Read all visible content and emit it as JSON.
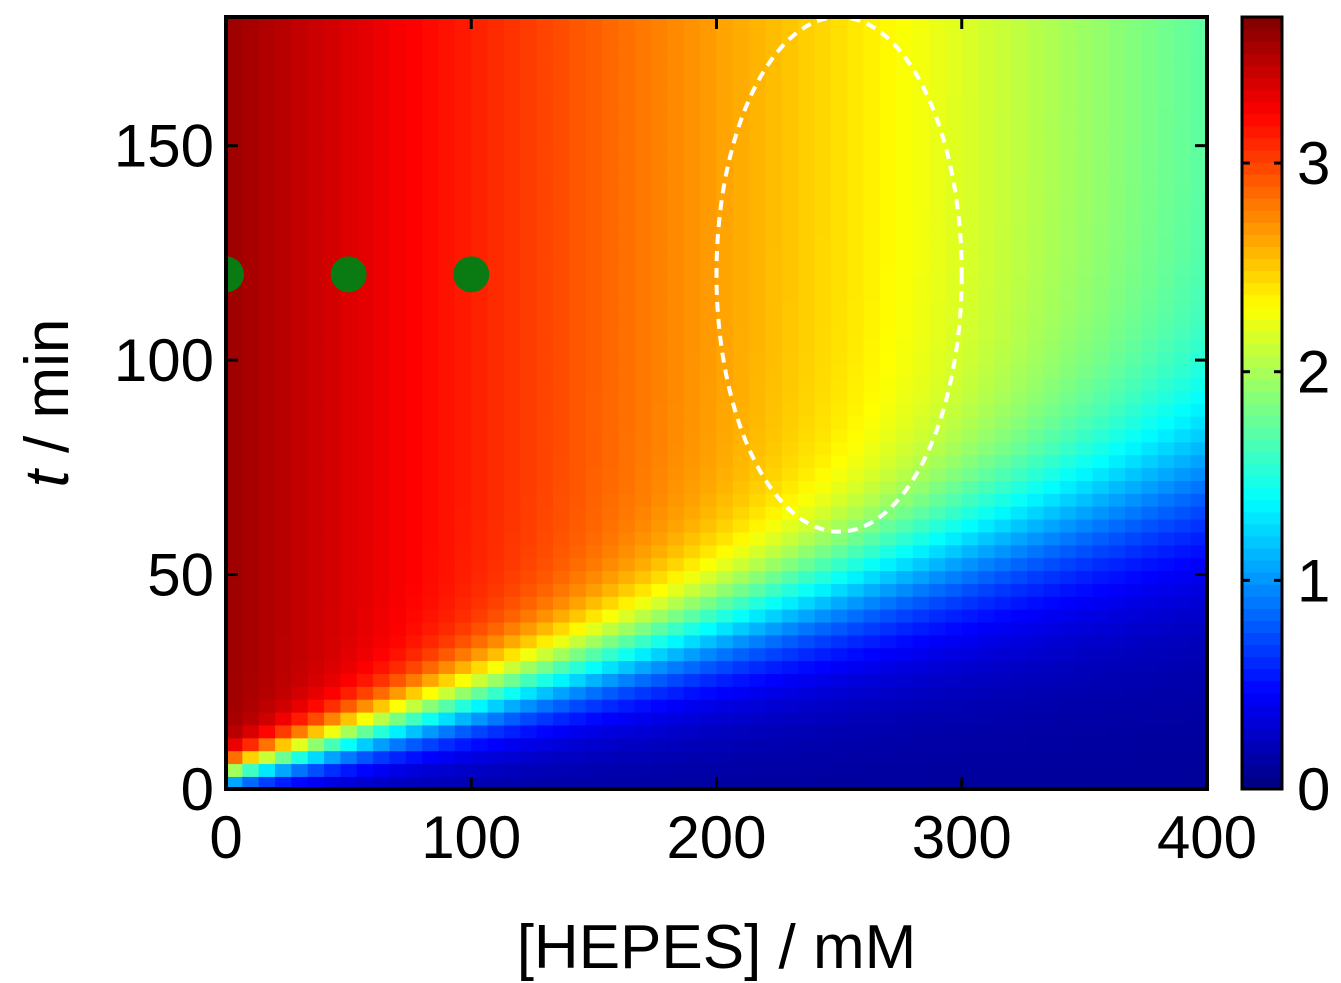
{
  "chart_data": {
    "type": "heatmap",
    "xlabel": "[HEPES] / mM",
    "ylabel_var": "t",
    "ylabel_unit": " / min",
    "xlim": [
      0,
      400
    ],
    "ylim": [
      0,
      180
    ],
    "x_ticks": [
      0,
      100,
      200,
      300,
      400
    ],
    "y_ticks": [
      0,
      50,
      100,
      150
    ],
    "colorbar": {
      "range": [
        0,
        3.7
      ],
      "ticks": [
        0,
        1,
        2,
        3
      ],
      "colormap": "jet"
    },
    "markers": [
      {
        "x": 0,
        "y": 120
      },
      {
        "x": 50,
        "y": 120
      },
      {
        "x": 100,
        "y": 120
      }
    ],
    "marker_color": "#0a7a12",
    "region_ellipse": {
      "cx": 250,
      "cy": 120,
      "rx": 50,
      "ry": 60
    },
    "region_color": "#ffffff"
  }
}
